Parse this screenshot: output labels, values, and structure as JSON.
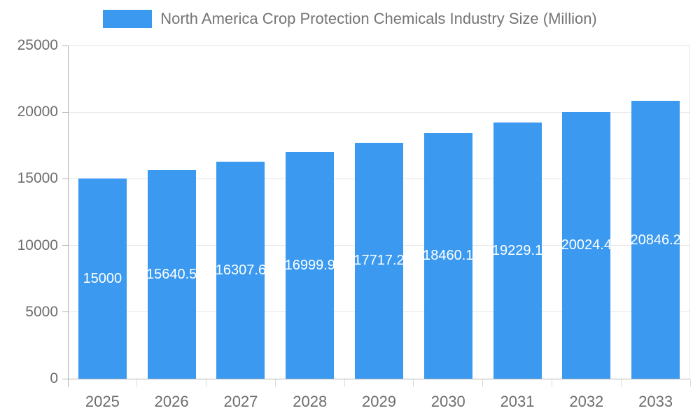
{
  "chart_data": {
    "type": "bar",
    "title": "North America Crop Protection Chemicals Industry Size (Million)",
    "legend": {
      "position": "top",
      "label": "North America Crop Protection Chemicals Industry Size (Million)"
    },
    "categories": [
      "2025",
      "2026",
      "2027",
      "2028",
      "2029",
      "2030",
      "2031",
      "2032",
      "2033"
    ],
    "series": [
      {
        "name": "North America Crop Protection Chemicals Industry Size (Million)",
        "values": [
          15000,
          15640.5,
          16307.6,
          16999.9,
          17717.2,
          18460.1,
          19229.1,
          20024.4,
          20846.2
        ]
      }
    ],
    "bar_labels": [
      "15000",
      "15640.5",
      "16307.6",
      "16999.9",
      "17717.2",
      "18460.1",
      "19229.1",
      "20024.4",
      "20846.2"
    ],
    "xlabel": "",
    "ylabel": "",
    "ylim": [
      0,
      25000
    ],
    "y_ticks": [
      0,
      5000,
      10000,
      15000,
      20000,
      25000
    ],
    "y_tick_labels": [
      "0",
      "5000",
      "10000",
      "15000",
      "20000",
      "25000"
    ],
    "grid": true,
    "colors": {
      "bar": "#3b9af0",
      "bar_label_text": "#ffffff",
      "legend_text": "#757575",
      "axis_text": "#6e6e6e",
      "gridline": "#e5e5e5",
      "axis_line": "#b3b3b3",
      "background": "#ffffff"
    }
  }
}
